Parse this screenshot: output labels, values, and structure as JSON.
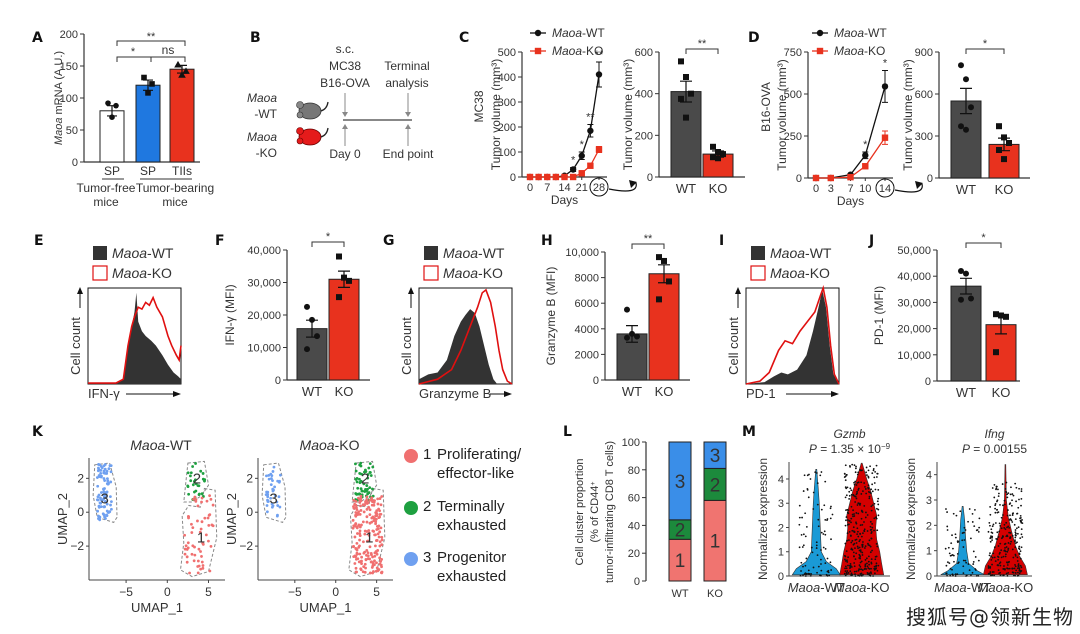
{
  "panels": {
    "A": {
      "label": "A"
    },
    "B": {
      "label": "B"
    },
    "C": {
      "label": "C"
    },
    "D": {
      "label": "D"
    },
    "E": {
      "label": "E"
    },
    "F": {
      "label": "F"
    },
    "G": {
      "label": "G"
    },
    "H": {
      "label": "H"
    },
    "I": {
      "label": "I"
    },
    "J": {
      "label": "J"
    },
    "K": {
      "label": "K"
    },
    "L": {
      "label": "L"
    },
    "M": {
      "label": "M"
    }
  },
  "colors": {
    "wt": "#4a4a4a",
    "ko": "#e8321e",
    "sp_tb": "#1f78e0",
    "white": "#ffffff",
    "c1": "#f07470",
    "c2": "#1c8a3c",
    "c3": "#3a8ee8",
    "blue_violin": "#1a9ad6",
    "red_violin": "#d40000",
    "legend_c1": "#f07070",
    "legend_c2": "#1ea040",
    "legend_c3": "#6fa0f0"
  },
  "schematic": {
    "top_lines": [
      "s.c.",
      "MC38",
      "B16-OVA"
    ],
    "terminal": [
      "Terminal",
      "analysis"
    ],
    "wt": [
      "Maoa",
      "-WT"
    ],
    "ko": [
      "Maoa",
      "-KO"
    ],
    "day0": "Day 0",
    "endpoint": "End point"
  },
  "legend": {
    "wt": "Maoa-WT",
    "ko": "Maoa-KO",
    "wt_gene": "Maoa",
    "wt_suffix": "-WT",
    "ko_suffix": "-KO"
  },
  "umap_legend": [
    {
      "num": "1",
      "line1": "Proliferating/",
      "line2": "effector-like"
    },
    {
      "num": "2",
      "line1": "Terminally",
      "line2": "exhausted"
    },
    {
      "num": "3",
      "line1": "Progenitor",
      "line2": "exhausted"
    }
  ],
  "watermark": "搜狐号@领新生物",
  "chart_data": [
    {
      "id": "A",
      "type": "bar",
      "ylabel": "Maoa mRNA (A.U.)",
      "ylim": [
        0,
        200
      ],
      "yticks": [
        0,
        50,
        100,
        150,
        200
      ],
      "categories": [
        "SP",
        "SP",
        "TIIs"
      ],
      "group_labels": [
        "Tumor-free mice",
        "Tumor-bearing mice"
      ],
      "values": [
        80,
        120,
        145
      ],
      "errors": [
        8,
        8,
        6
      ],
      "points": [
        [
          92,
          88,
          70
        ],
        [
          132,
          122,
          108
        ],
        [
          152,
          142,
          136
        ]
      ],
      "significance": [
        {
          "pair": [
            0,
            2
          ],
          "label": "**"
        },
        {
          "pair": [
            0,
            1
          ],
          "label": "*"
        },
        {
          "pair": [
            1,
            2
          ],
          "label": "ns"
        }
      ]
    },
    {
      "id": "C-line",
      "type": "line",
      "ylabel": "Tumor volume (mm³)",
      "side_label": "MC38",
      "xlabel": "Days",
      "ylim": [
        0,
        500
      ],
      "yticks": [
        0,
        100,
        200,
        300,
        400,
        500
      ],
      "xticks": [
        0,
        7,
        14,
        21,
        28
      ],
      "series": [
        {
          "name": "Maoa-WT",
          "x": [
            0,
            3.5,
            7,
            10.5,
            14,
            17.5,
            21,
            24.5,
            28
          ],
          "values": [
            0,
            0,
            0,
            0,
            5,
            30,
            85,
            185,
            410
          ],
          "errors": [
            0,
            0,
            0,
            0,
            3,
            8,
            15,
            25,
            50
          ]
        },
        {
          "name": "Maoa-KO",
          "x": [
            0,
            3.5,
            7,
            10.5,
            14,
            17.5,
            21,
            24.5,
            28
          ],
          "values": [
            0,
            0,
            0,
            0,
            0,
            0,
            15,
            45,
            110
          ],
          "errors": [
            0,
            0,
            0,
            0,
            0,
            0,
            4,
            8,
            12
          ]
        }
      ],
      "annotations": [
        {
          "x": 17.5,
          "label": "*"
        },
        {
          "x": 21,
          "label": "*"
        },
        {
          "x": 24.5,
          "label": "**"
        },
        {
          "x": 28,
          "label": "**"
        }
      ],
      "highlight_x": "28"
    },
    {
      "id": "C-bar",
      "type": "bar",
      "ylabel": "Tumor volume (mm³)",
      "ylim": [
        0,
        600
      ],
      "yticks": [
        0,
        200,
        400,
        600
      ],
      "categories": [
        "WT",
        "KO"
      ],
      "values": [
        410,
        110
      ],
      "errors": [
        50,
        15
      ],
      "points": [
        [
          555,
          480,
          400,
          375,
          285
        ],
        [
          145,
          120,
          110,
          95,
          90
        ]
      ],
      "significance": [
        {
          "pair": [
            0,
            1
          ],
          "label": "**"
        }
      ]
    },
    {
      "id": "D-line",
      "type": "line",
      "ylabel": "Tumor volume (mm³)",
      "side_label": "B16-OVA",
      "xlabel": "Days",
      "ylim": [
        0,
        750
      ],
      "yticks": [
        0,
        250,
        500,
        750
      ],
      "xticks": [
        0,
        3,
        7,
        10,
        14
      ],
      "series": [
        {
          "name": "Maoa-WT",
          "x": [
            0,
            3,
            7,
            10,
            14
          ],
          "values": [
            0,
            0,
            20,
            135,
            545
          ],
          "errors": [
            0,
            0,
            5,
            20,
            95
          ]
        },
        {
          "name": "Maoa-KO",
          "x": [
            0,
            3,
            7,
            10,
            14
          ],
          "values": [
            0,
            0,
            5,
            70,
            240
          ],
          "errors": [
            0,
            0,
            3,
            12,
            40
          ]
        }
      ],
      "annotations": [
        {
          "x": 10,
          "label": "*"
        },
        {
          "x": 14,
          "label": "*"
        }
      ],
      "highlight_x": "14"
    },
    {
      "id": "D-bar",
      "type": "bar",
      "ylabel": "Tumor volume (mm³)",
      "ylim": [
        0,
        900
      ],
      "yticks": [
        0,
        300,
        600,
        900
      ],
      "categories": [
        "WT",
        "KO"
      ],
      "values": [
        550,
        240
      ],
      "errors": [
        90,
        45
      ],
      "points": [
        [
          805,
          705,
          505,
          370,
          345
        ],
        [
          370,
          290,
          250,
          200,
          135
        ]
      ],
      "significance": [
        {
          "pair": [
            0,
            1
          ],
          "label": "*"
        }
      ]
    },
    {
      "id": "E",
      "type": "area",
      "xlabel": "IFN-γ",
      "ylabel": "Cell count",
      "series": [
        "Maoa-WT",
        "Maoa-KO"
      ]
    },
    {
      "id": "F",
      "type": "bar",
      "ylabel": "IFN-γ (MFI)",
      "ylim": [
        0,
        40000
      ],
      "yticks": [
        "0",
        "10,000",
        "20,000",
        "30,000",
        "40,000"
      ],
      "categories": [
        "WT",
        "KO"
      ],
      "values": [
        15800,
        31000
      ],
      "errors": [
        2600,
        2500
      ],
      "points": [
        [
          22500,
          18500,
          13500,
          9500
        ],
        [
          38000,
          31500,
          30500,
          25500
        ]
      ],
      "significance": [
        {
          "pair": [
            0,
            1
          ],
          "label": "*"
        }
      ]
    },
    {
      "id": "G",
      "type": "area",
      "xlabel": "Granzyme B",
      "ylabel": "Cell count",
      "series": [
        "Maoa-WT",
        "Maoa-KO"
      ]
    },
    {
      "id": "H",
      "type": "bar",
      "ylabel": "Granzyme B (MFI)",
      "ylim": [
        0,
        10000
      ],
      "yticks": [
        "0",
        "2000",
        "4000",
        "6000",
        "8000",
        "10,000"
      ],
      "categories": [
        "WT",
        "KO"
      ],
      "values": [
        3600,
        8300
      ],
      "errors": [
        650,
        700
      ],
      "points": [
        [
          5500,
          3600,
          3400,
          3300
        ],
        [
          9600,
          9300,
          7700,
          6300
        ]
      ],
      "significance": [
        {
          "pair": [
            0,
            1
          ],
          "label": "**"
        }
      ]
    },
    {
      "id": "I",
      "type": "area",
      "xlabel": "PD-1",
      "ylabel": "Cell count",
      "series": [
        "Maoa-WT",
        "Maoa-KO"
      ]
    },
    {
      "id": "J",
      "type": "bar",
      "ylabel": "PD-1 (MFI)",
      "ylim": [
        0,
        50000
      ],
      "yticks": [
        "0",
        "10,000",
        "20,000",
        "30,000",
        "40,000",
        "50,000"
      ],
      "categories": [
        "WT",
        "KO"
      ],
      "values": [
        36200,
        21500
      ],
      "errors": [
        3000,
        3500
      ],
      "points": [
        [
          42000,
          41000,
          31500,
          31000
        ],
        [
          25500,
          25000,
          24500,
          11000
        ]
      ],
      "significance": [
        {
          "pair": [
            0,
            1
          ],
          "label": "*"
        }
      ]
    },
    {
      "id": "K-WT",
      "type": "scatter",
      "title": "Maoa-WT",
      "xlabel": "UMAP_1",
      "ylabel": "UMAP_2",
      "xticks": [
        -5,
        0,
        5
      ],
      "yticks": [
        -2,
        0,
        2
      ],
      "xlim": [
        -9.5,
        7
      ],
      "ylim": [
        -4,
        3.2
      ],
      "clusters": [
        "1",
        "2",
        "3"
      ]
    },
    {
      "id": "K-KO",
      "type": "scatter",
      "title": "Maoa-KO",
      "xlabel": "UMAP_1",
      "ylabel": "UMAP_2",
      "xticks": [
        -5,
        0,
        5
      ],
      "yticks": [
        -2,
        0,
        2
      ],
      "xlim": [
        -9.5,
        7
      ],
      "ylim": [
        -4,
        3.2
      ],
      "clusters": [
        "1",
        "2",
        "3"
      ]
    },
    {
      "id": "L",
      "type": "bar",
      "stacked": true,
      "ylabel": "Cell cluster proportion (% of CD44+ tumor-infiltrating CD8 T cells)",
      "ylim": [
        0,
        100
      ],
      "yticks": [
        0,
        20,
        40,
        60,
        80,
        100
      ],
      "categories": [
        "WT",
        "KO"
      ],
      "series": [
        {
          "name": "1",
          "values": [
            30,
            58
          ]
        },
        {
          "name": "2",
          "values": [
            14,
            23
          ]
        },
        {
          "name": "3",
          "values": [
            56,
            19
          ]
        }
      ]
    },
    {
      "id": "M-Gzmb",
      "type": "violin",
      "title": "Gzmb",
      "pvalue": "P = 1.35 × 10",
      "pexp": "−9",
      "ylabel": "Normalized expression",
      "ylim": [
        0,
        4.7
      ],
      "yticks": [
        0,
        1,
        2,
        3,
        4
      ],
      "categories": [
        "Maoa-WT",
        "Maoa-KO"
      ]
    },
    {
      "id": "M-Ifng",
      "type": "violin",
      "title": "Ifng",
      "pvalue": "P = 0.00155",
      "ylabel": "Normalized expression",
      "ylim": [
        0,
        4.5
      ],
      "yticks": [
        0,
        1,
        2,
        3,
        4
      ],
      "categories": [
        "Maoa-WT",
        "Maoa-KO"
      ]
    }
  ]
}
